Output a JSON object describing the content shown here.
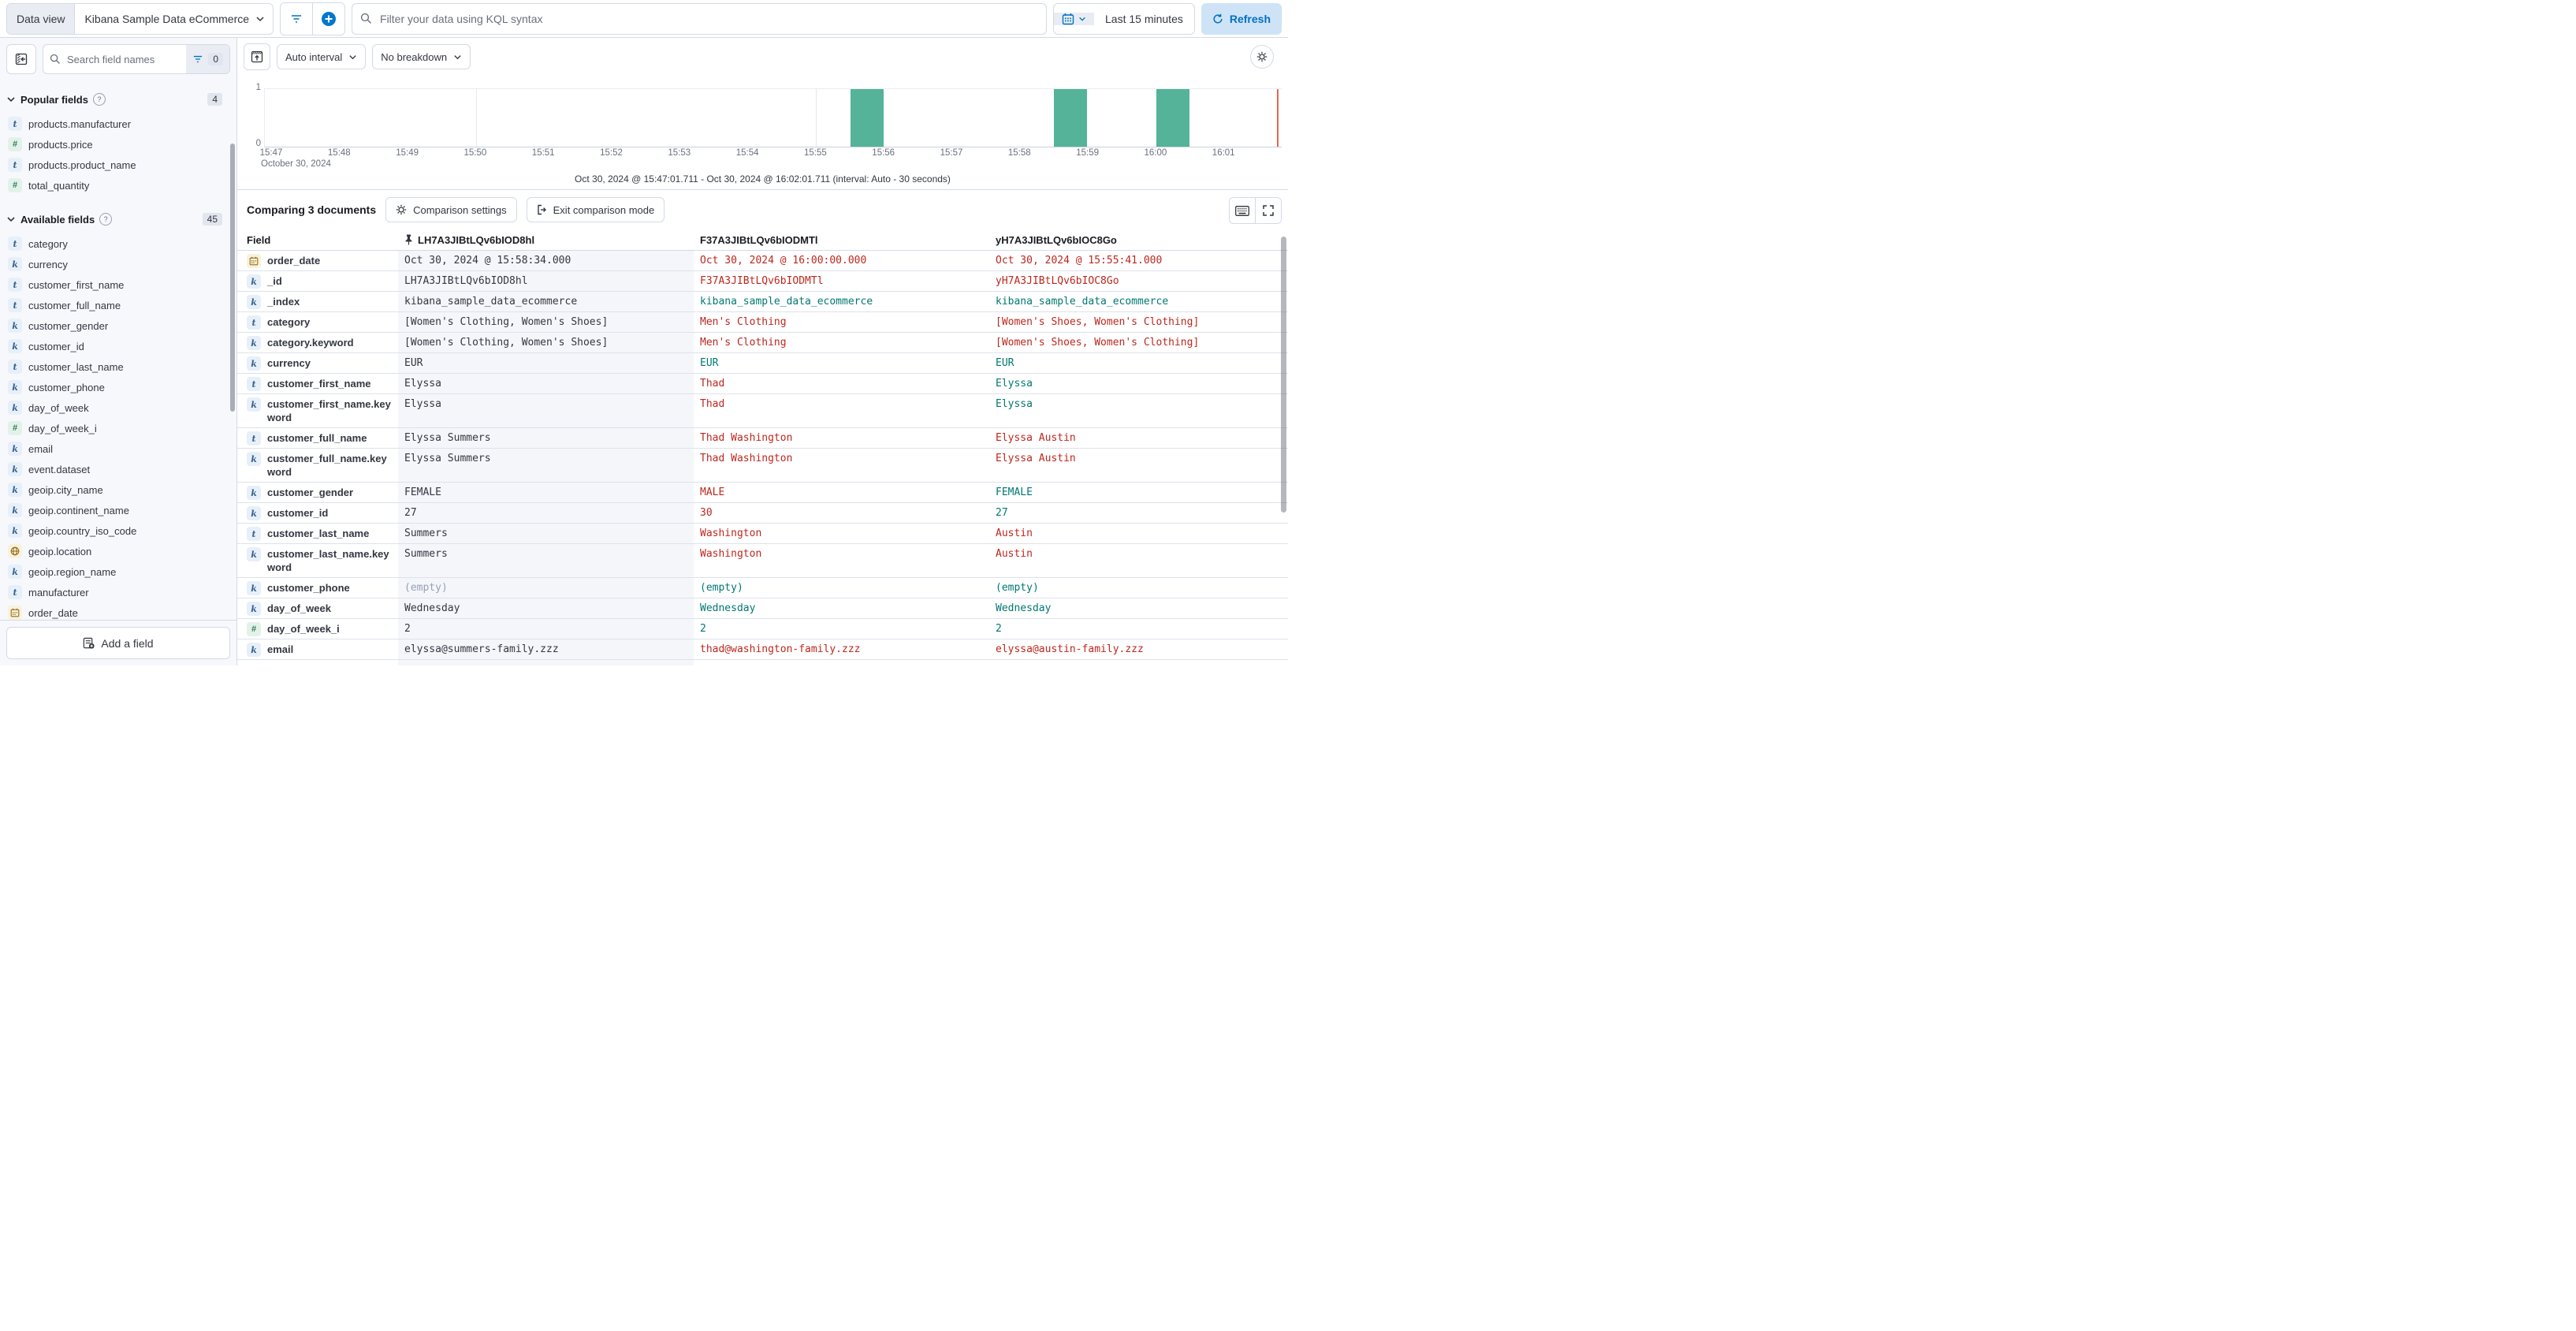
{
  "top_bar": {
    "data_view_label": "Data view",
    "data_view_value": "Kibana Sample Data eCommerce",
    "search_placeholder": "Filter your data using KQL syntax",
    "time_range": "Last 15 minutes",
    "refresh_label": "Refresh"
  },
  "sidebar": {
    "search_placeholder": "Search field names",
    "filter_count": "0",
    "popular": {
      "label": "Popular fields",
      "count": "4",
      "items": [
        {
          "type": "t",
          "label": "products.manufacturer"
        },
        {
          "type": "num",
          "label": "products.price"
        },
        {
          "type": "t",
          "label": "products.product_name"
        },
        {
          "type": "num",
          "label": "total_quantity"
        }
      ]
    },
    "available": {
      "label": "Available fields",
      "count": "45",
      "items": [
        {
          "type": "t",
          "label": "category"
        },
        {
          "type": "k",
          "label": "currency"
        },
        {
          "type": "t",
          "label": "customer_first_name"
        },
        {
          "type": "t",
          "label": "customer_full_name"
        },
        {
          "type": "k",
          "label": "customer_gender"
        },
        {
          "type": "k",
          "label": "customer_id"
        },
        {
          "type": "t",
          "label": "customer_last_name"
        },
        {
          "type": "k",
          "label": "customer_phone"
        },
        {
          "type": "k",
          "label": "day_of_week"
        },
        {
          "type": "num",
          "label": "day_of_week_i"
        },
        {
          "type": "k",
          "label": "email"
        },
        {
          "type": "k",
          "label": "event.dataset"
        },
        {
          "type": "k",
          "label": "geoip.city_name"
        },
        {
          "type": "k",
          "label": "geoip.continent_name"
        },
        {
          "type": "k",
          "label": "geoip.country_iso_code"
        },
        {
          "type": "geo",
          "label": "geoip.location"
        },
        {
          "type": "k",
          "label": "geoip.region_name"
        },
        {
          "type": "t",
          "label": "manufacturer"
        },
        {
          "type": "date",
          "label": "order_date"
        }
      ]
    },
    "add_field_label": "Add a field"
  },
  "histogram": {
    "interval_button": "Auto interval",
    "breakdown_button": "No breakdown",
    "caption": "Oct 30, 2024 @ 15:47:01.711 - Oct 30, 2024 @ 16:02:01.711 (interval: Auto - 30 seconds)"
  },
  "chart_data": {
    "type": "bar",
    "title": "",
    "xlabel": "October 30, 2024",
    "ylabel": "",
    "ylim": [
      0,
      1
    ],
    "y_ticks": [
      "0",
      "1"
    ],
    "x_ticks": [
      "15:47",
      "15:48",
      "15:49",
      "15:50",
      "15:51",
      "15:52",
      "15:53",
      "15:54",
      "15:55",
      "15:56",
      "15:57",
      "15:58",
      "15:59",
      "16:00",
      "16:01"
    ],
    "gridlines": [
      "15:50",
      "15:55",
      "16:00"
    ],
    "interval": "30 seconds",
    "time_range_start": "Oct 30, 2024 @ 15:47:01.711",
    "time_range_end": "Oct 30, 2024 @ 16:02:01.711",
    "bars": [
      {
        "start": "15:55:30",
        "count": 1
      },
      {
        "start": "15:58:30",
        "count": 1
      },
      {
        "start": "16:00:00",
        "count": 1
      }
    ],
    "bar_color": "#54B399",
    "end_marker_color": "#E7664C",
    "legend": "off",
    "grid": "on"
  },
  "comparison": {
    "title": "Comparing 3 documents",
    "settings_label": "Comparison settings",
    "exit_label": "Exit comparison mode"
  },
  "table": {
    "field_header": "Field",
    "doc_columns": [
      {
        "id": "LH7A3JIBtLQv6bIOD8hl",
        "pinned": true
      },
      {
        "id": "F37A3JIBtLQv6bIODMTl",
        "pinned": false
      },
      {
        "id": "yH7A3JIBtLQv6bIOC8Go",
        "pinned": false
      }
    ],
    "rows": [
      {
        "field": "order_date",
        "type": "date",
        "cells": [
          {
            "text": "Oct 30, 2024 @ 15:58:34.000",
            "status": "default"
          },
          {
            "text": "Oct 30, 2024 @ 16:00:00.000",
            "status": "diff"
          },
          {
            "text": "Oct 30, 2024 @ 15:55:41.000",
            "status": "diff"
          }
        ]
      },
      {
        "field": "_id",
        "type": "k",
        "cells": [
          {
            "text": "LH7A3JIBtLQv6bIOD8hl",
            "status": "default"
          },
          {
            "text": "F37A3JIBtLQv6bIODMTl",
            "status": "diff"
          },
          {
            "text": "yH7A3JIBtLQv6bIOC8Go",
            "status": "diff"
          }
        ]
      },
      {
        "field": "_index",
        "type": "k",
        "cells": [
          {
            "text": "kibana_sample_data_ecommerce",
            "status": "default"
          },
          {
            "text": "kibana_sample_data_ecommerce",
            "status": "match"
          },
          {
            "text": "kibana_sample_data_ecommerce",
            "status": "match"
          }
        ]
      },
      {
        "field": "category",
        "type": "t",
        "cells": [
          {
            "text": "[Women's Clothing, Women's Shoes]",
            "status": "default"
          },
          {
            "text": "Men's Clothing",
            "status": "diff"
          },
          {
            "text": "[Women's Shoes, Women's Clothing]",
            "status": "diff"
          }
        ]
      },
      {
        "field": "category.keyword",
        "type": "k",
        "cells": [
          {
            "text": "[Women's Clothing, Women's Shoes]",
            "status": "default"
          },
          {
            "text": "Men's Clothing",
            "status": "diff"
          },
          {
            "text": "[Women's Shoes, Women's Clothing]",
            "status": "diff"
          }
        ]
      },
      {
        "field": "currency",
        "type": "k",
        "cells": [
          {
            "text": "EUR",
            "status": "default"
          },
          {
            "text": "EUR",
            "status": "match"
          },
          {
            "text": "EUR",
            "status": "match"
          }
        ]
      },
      {
        "field": "customer_first_name",
        "type": "t",
        "cells": [
          {
            "text": "Elyssa",
            "status": "default"
          },
          {
            "text": "Thad",
            "status": "diff"
          },
          {
            "text": "Elyssa",
            "status": "match"
          }
        ]
      },
      {
        "field": "customer_first_name.keyword",
        "type": "k",
        "cells": [
          {
            "text": "Elyssa",
            "status": "default"
          },
          {
            "text": "Thad",
            "status": "diff"
          },
          {
            "text": "Elyssa",
            "status": "match"
          }
        ]
      },
      {
        "field": "customer_full_name",
        "type": "t",
        "cells": [
          {
            "text": "Elyssa Summers",
            "status": "default"
          },
          {
            "text": "Thad Washington",
            "status": "diff"
          },
          {
            "text": "Elyssa Austin",
            "status": "diff"
          }
        ]
      },
      {
        "field": "customer_full_name.keyword",
        "type": "k",
        "cells": [
          {
            "text": "Elyssa Summers",
            "status": "default"
          },
          {
            "text": "Thad Washington",
            "status": "diff"
          },
          {
            "text": "Elyssa Austin",
            "status": "diff"
          }
        ]
      },
      {
        "field": "customer_gender",
        "type": "k",
        "cells": [
          {
            "text": "FEMALE",
            "status": "default"
          },
          {
            "text": "MALE",
            "status": "diff"
          },
          {
            "text": "FEMALE",
            "status": "match"
          }
        ]
      },
      {
        "field": "customer_id",
        "type": "k",
        "cells": [
          {
            "text": "27",
            "status": "default"
          },
          {
            "text": "30",
            "status": "diff"
          },
          {
            "text": "27",
            "status": "match"
          }
        ]
      },
      {
        "field": "customer_last_name",
        "type": "t",
        "cells": [
          {
            "text": "Summers",
            "status": "default"
          },
          {
            "text": "Washington",
            "status": "diff"
          },
          {
            "text": "Austin",
            "status": "diff"
          }
        ]
      },
      {
        "field": "customer_last_name.keyword",
        "type": "k",
        "cells": [
          {
            "text": "Summers",
            "status": "default"
          },
          {
            "text": "Washington",
            "status": "diff"
          },
          {
            "text": "Austin",
            "status": "diff"
          }
        ]
      },
      {
        "field": "customer_phone",
        "type": "k",
        "cells": [
          {
            "text": "(empty)",
            "status": "subdued"
          },
          {
            "text": "(empty)",
            "status": "match"
          },
          {
            "text": "(empty)",
            "status": "match"
          }
        ]
      },
      {
        "field": "day_of_week",
        "type": "k",
        "cells": [
          {
            "text": "Wednesday",
            "status": "default"
          },
          {
            "text": "Wednesday",
            "status": "match"
          },
          {
            "text": "Wednesday",
            "status": "match"
          }
        ]
      },
      {
        "field": "day_of_week_i",
        "type": "num",
        "cells": [
          {
            "text": "2",
            "status": "default"
          },
          {
            "text": "2",
            "status": "match"
          },
          {
            "text": "2",
            "status": "match"
          }
        ]
      },
      {
        "field": "email",
        "type": "k",
        "cells": [
          {
            "text": "elyssa@summers-family.zzz",
            "status": "default"
          },
          {
            "text": "thad@washington-family.zzz",
            "status": "diff"
          },
          {
            "text": "elyssa@austin-family.zzz",
            "status": "diff"
          }
        ]
      }
    ]
  }
}
